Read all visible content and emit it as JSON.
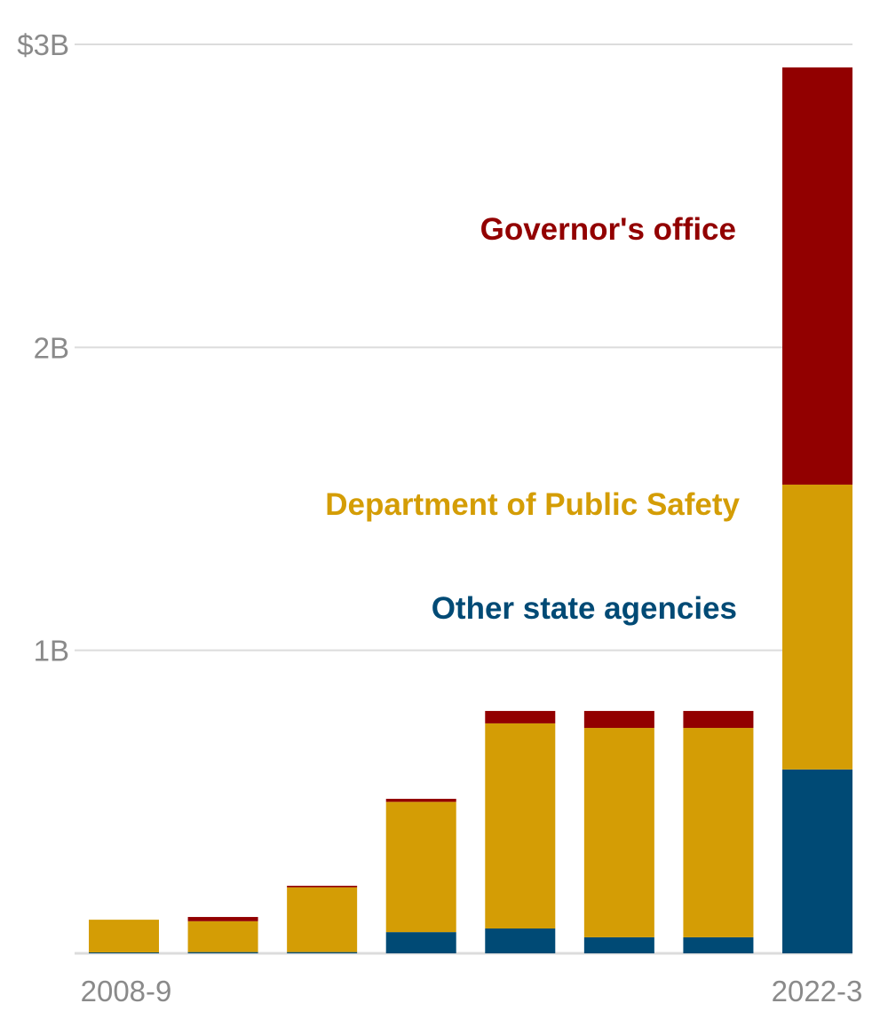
{
  "chart_data": {
    "type": "bar",
    "stacked": true,
    "title": "",
    "xlabel": "",
    "ylabel": "",
    "ylim": [
      0,
      3
    ],
    "y_unit": "billions of dollars",
    "y_ticks": [
      {
        "value": 1,
        "label": "1B"
      },
      {
        "value": 2,
        "label": "2B"
      },
      {
        "value": 3,
        "label": "$3B"
      }
    ],
    "grid": true,
    "categories": [
      "2008-9",
      "",
      "",
      "",
      "",
      "",
      "",
      "2022-3"
    ],
    "x_tick_labels": [
      "2008-9",
      "2022-3"
    ],
    "series": [
      {
        "name": "Other state agencies",
        "color": "#004a75",
        "values": [
          0.003,
          0.004,
          0.004,
          0.07,
          0.082,
          0.053,
          0.053,
          0.607
        ]
      },
      {
        "name": "Department of Public Safety",
        "color": "#d49d05",
        "values": [
          0.108,
          0.102,
          0.214,
          0.43,
          0.677,
          0.691,
          0.691,
          0.94
        ]
      },
      {
        "name": "Governor's office",
        "color": "#920000",
        "values": [
          0.0,
          0.014,
          0.005,
          0.01,
          0.041,
          0.056,
          0.056,
          1.377
        ]
      }
    ],
    "legend": "inline-labels"
  }
}
